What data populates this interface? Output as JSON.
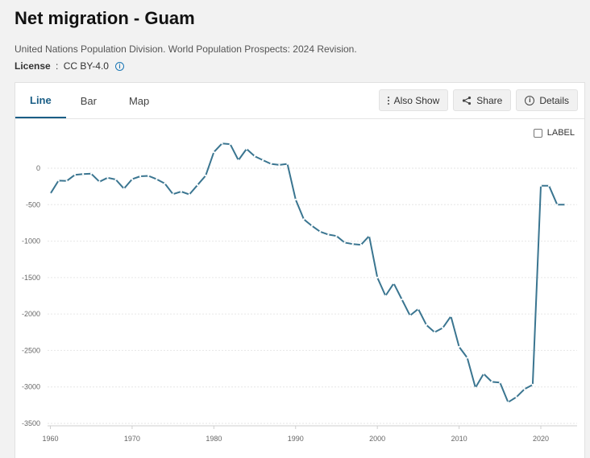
{
  "header": {
    "title": "Net migration - Guam",
    "source": "United Nations Population Division. World Population Prospects: 2024 Revision.",
    "license_label": "License",
    "license_sep": " : ",
    "license_value": "CC BY-4.0",
    "license_info_icon": "info-circle-icon"
  },
  "tabs": [
    {
      "label": "Line",
      "active": true
    },
    {
      "label": "Bar",
      "active": false
    },
    {
      "label": "Map",
      "active": false
    }
  ],
  "actions": {
    "also_show": "Also Show",
    "share": "Share",
    "details": "Details"
  },
  "label_toggle": "LABEL",
  "colors": {
    "line": "#3a7590",
    "accent": "#1a5e86"
  },
  "chart_data": {
    "type": "line",
    "title": "",
    "xlabel": "",
    "ylabel": "",
    "xlim": [
      1960,
      2023
    ],
    "ylim": [
      -3500,
      0
    ],
    "yticks": [
      0,
      -500,
      -1000,
      -1500,
      -2000,
      -2500,
      -3000,
      -3500
    ],
    "xticks": [
      1960,
      1970,
      1980,
      1990,
      2000,
      2010,
      2020
    ],
    "grid": true,
    "series": [
      {
        "name": "",
        "x": [
          1960,
          1961,
          1962,
          1963,
          1964,
          1965,
          1966,
          1967,
          1968,
          1969,
          1970,
          1971,
          1972,
          1973,
          1974,
          1975,
          1976,
          1977,
          1978,
          1979,
          1980,
          1981,
          1982,
          1983,
          1984,
          1985,
          1986,
          1987,
          1988,
          1989,
          1990,
          1991,
          1992,
          1993,
          1994,
          1995,
          1996,
          1997,
          1998,
          1999,
          2000,
          2001,
          2002,
          2003,
          2004,
          2005,
          2006,
          2007,
          2008,
          2009,
          2010,
          2011,
          2012,
          2013,
          2014,
          2015,
          2016,
          2017,
          2018,
          2019,
          2020,
          2021,
          2022,
          2023
        ],
        "values": [
          -350,
          -170,
          -175,
          -90,
          -80,
          -75,
          -185,
          -130,
          -155,
          -280,
          -150,
          -110,
          -105,
          -150,
          -210,
          -355,
          -320,
          -360,
          -230,
          -100,
          220,
          340,
          330,
          110,
          265,
          165,
          110,
          60,
          45,
          60,
          -430,
          -700,
          -790,
          -870,
          -910,
          -930,
          -1020,
          -1040,
          -1050,
          -930,
          -1500,
          -1750,
          -1580,
          -1800,
          -2020,
          -1930,
          -2150,
          -2250,
          -2190,
          -2030,
          -2450,
          -2600,
          -3010,
          -2820,
          -2930,
          -2940,
          -3210,
          -3140,
          -3030,
          -2970,
          -240,
          -240,
          -500,
          -500
        ]
      }
    ]
  }
}
